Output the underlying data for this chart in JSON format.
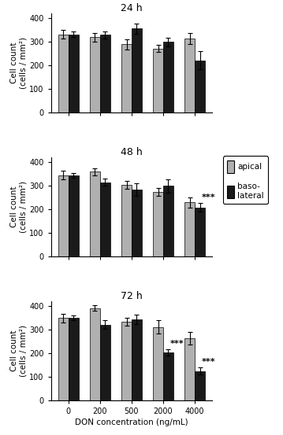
{
  "subplots": [
    {
      "title": "24 h",
      "categories": [
        "0",
        "200",
        "500",
        "2000",
        "4000"
      ],
      "apical_means": [
        330,
        318,
        288,
        270,
        312
      ],
      "basolateral_means": [
        330,
        328,
        355,
        298,
        220
      ],
      "apical_errors": [
        18,
        18,
        22,
        15,
        22
      ],
      "basolateral_errors": [
        12,
        15,
        22,
        18,
        38
      ],
      "significance": [
        null,
        null,
        null,
        null,
        null
      ]
    },
    {
      "title": "48 h",
      "categories": [
        "0",
        "200",
        "500",
        "2000",
        "4000"
      ],
      "apical_means": [
        343,
        358,
        302,
        272,
        228
      ],
      "basolateral_means": [
        343,
        313,
        282,
        298,
        207
      ],
      "apical_errors": [
        18,
        15,
        18,
        18,
        22
      ],
      "basolateral_errors": [
        10,
        15,
        28,
        28,
        18
      ],
      "significance": [
        null,
        null,
        null,
        null,
        "***"
      ]
    },
    {
      "title": "72 h",
      "categories": [
        "0",
        "200",
        "500",
        "2000",
        "4000"
      ],
      "apical_means": [
        348,
        390,
        332,
        310,
        262
      ],
      "basolateral_means": [
        348,
        320,
        343,
        202,
        123
      ],
      "apical_errors": [
        18,
        12,
        15,
        28,
        28
      ],
      "basolateral_errors": [
        10,
        18,
        20,
        12,
        15
      ],
      "significance": [
        null,
        null,
        null,
        "***",
        "***"
      ]
    }
  ],
  "apical_color": "#b0b0b0",
  "basolateral_color": "#1a1a1a",
  "ylabel": "Cell count\n(cells / mm²)",
  "xlabel": "DON concentration (ng/mL)",
  "ylim": [
    0,
    420
  ],
  "yticks": [
    0,
    100,
    200,
    300,
    400
  ],
  "bar_width": 0.32,
  "legend_labels": [
    "apical",
    "baso-\nlateral"
  ],
  "sig_fontsize": 8,
  "title_fontsize": 9,
  "label_fontsize": 7.5,
  "tick_fontsize": 7
}
